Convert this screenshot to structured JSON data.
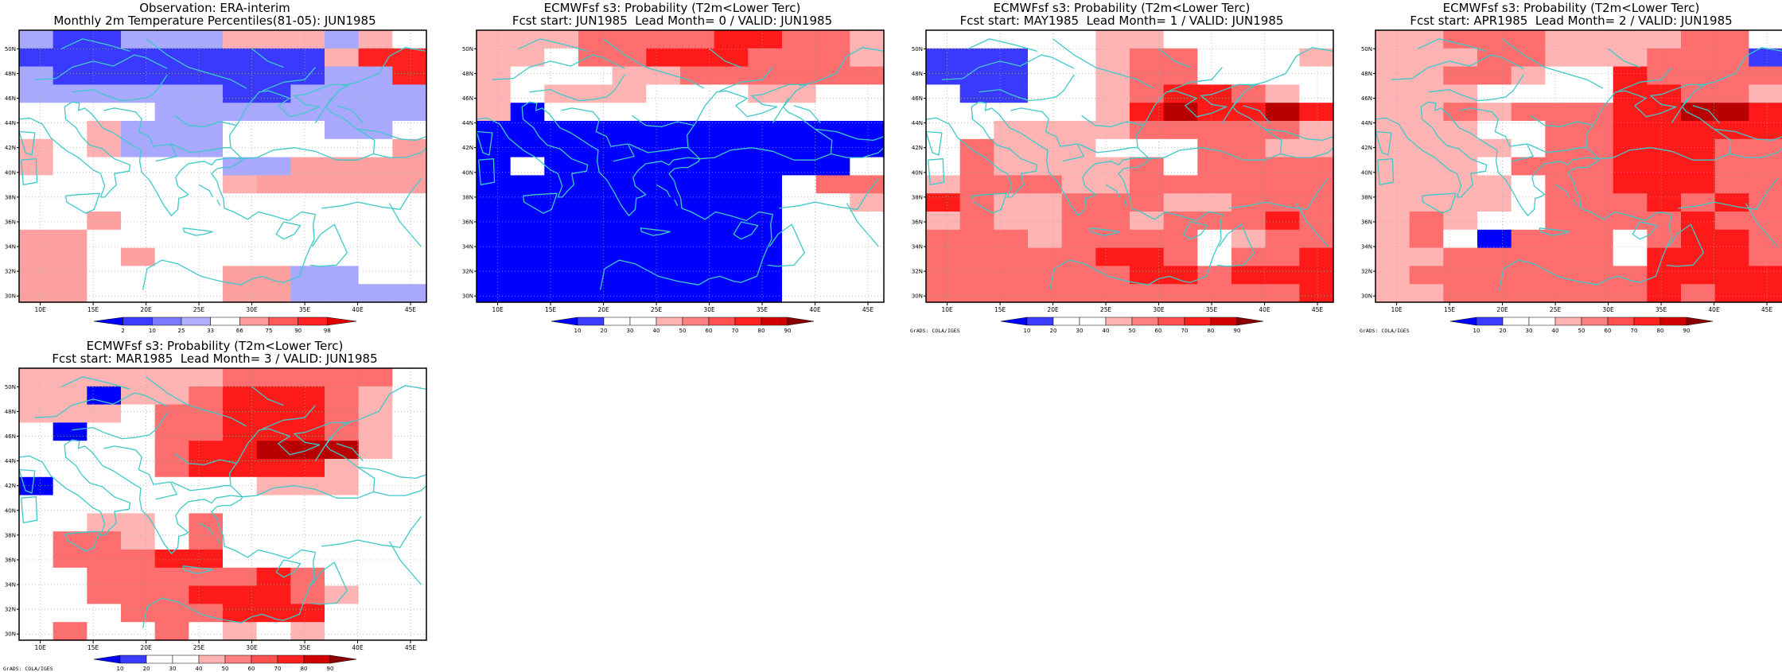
{
  "geo": {
    "lon_ticks": [
      "10E",
      "15E",
      "20E",
      "25E",
      "30E",
      "35E",
      "40E",
      "45E"
    ],
    "lon_tick_values": [
      10,
      15,
      20,
      25,
      30,
      35,
      40,
      45
    ],
    "lat_ticks": [
      "30N",
      "32N",
      "34N",
      "36N",
      "38N",
      "40N",
      "42N",
      "44N",
      "46N",
      "48N",
      "50N"
    ],
    "lat_tick_values": [
      30,
      32,
      34,
      36,
      38,
      40,
      42,
      44,
      46,
      48,
      50
    ],
    "lon_range": [
      8,
      46.5
    ],
    "lat_range": [
      29.5,
      51.5
    ],
    "coast_color": "#3ec9c9"
  },
  "colorbars": {
    "observation": {
      "labels": [
        "2",
        "10",
        "25",
        "33",
        "66",
        "75",
        "90",
        "98"
      ],
      "colors": [
        "#0000ff",
        "#3c3cff",
        "#7a7aff",
        "#b0b0ff",
        "#ffffff",
        "#ff9a9a",
        "#ff5a5a",
        "#ff2020",
        "#e00000"
      ]
    },
    "probability": {
      "labels": [
        "10",
        "20",
        "30",
        "40",
        "50",
        "60",
        "70",
        "80",
        "90"
      ],
      "colors": [
        "#0000ff",
        "#3c3cff",
        "#ffffff",
        "#ffffff",
        "#ffb3b3",
        "#ff8080",
        "#ff5050",
        "#ff2020",
        "#d00000",
        "#8a0000"
      ]
    }
  },
  "credit": "GrADS: COLA/IGES",
  "panels": [
    {
      "title_1": "Observation: ERA-interim",
      "title_2": "Monthly 2m Temperature Percentiles(81-05): JUN1985",
      "colorbar": "observation",
      "show_credit": false
    },
    {
      "title_1": "ECMWFsf s3: Probability (T2m<Lower Terc)",
      "title_2": "Fcst start: JUN1985  Lead Month= 0 / VALID: JUN1985",
      "colorbar": "probability",
      "show_credit": false
    },
    {
      "title_1": "ECMWFsf s3: Probability (T2m<Lower Terc)",
      "title_2": "Fcst start: MAY1985  Lead Month= 1 / VALID: JUN1985",
      "colorbar": "probability",
      "show_credit": true
    },
    {
      "title_1": "ECMWFsf s3: Probability (T2m<Lower Terc)",
      "title_2": "Fcst start: APR1985  Lead Month= 2 / VALID: JUN1985",
      "colorbar": "probability",
      "show_credit": true
    },
    {
      "title_1": "ECMWFsf s3: Probability (T2m<Lower Terc)",
      "title_2": "Fcst start: MAR1985  Lead Month= 3 / VALID: JUN1985",
      "colorbar": "probability",
      "show_credit": true
    }
  ],
  "grids": [
    [
      "CBBCCCDDDCDX",
      "BBBBBBBBBDEE",
      "CBBBBBBBBCCE",
      "CCCCCCBBCCCC",
      "XXXXCCCCCCCC",
      "XXDCCCXXXCCX",
      "DXDCCCXXXXXG",
      "DXXXXXCCGGGG",
      "XXXXXXDGGGGG",
      "XXXXXXXXXXXX",
      "XXGXXXXXXXXX",
      "GGXXXXXXXXXX",
      "GGXGXXXXXXXX",
      "GGXXXXGGCCXX",
      "GGXXXXGGCCCC"
    ],
    [
      "ggghhhhjjhhg",
      "ggXhhjjjhhhg",
      "gXXXgghhhhhh",
      "gXgggXXXggXX",
      "gAXXXXXXXXXX",
      "AAAAAAAAAAAA",
      "AAAAAAAAAAAA",
      "AXAAAAAAAAAX",
      "AAAAAAAAAXhh",
      "AAAAAAAAAXXg",
      "AAAAAAAAAXXX",
      "AAAAAAAAAXXX",
      "AAAAAAAAAXXX",
      "AAAAAAAAAXXX",
      "AAAAAAAAAXXX"
    ],
    [
      "XXXXXggXXXXX",
      "BBBXXghhXXXg",
      "BBBXXghhXXXX",
      "XBBXXghjjhgX",
      "XXXXXgjkjjkj",
      "XXgggghhhhhg",
      "XhgggXXXhhgg",
      "XhgggghXhhhh",
      "ghhhgghhhhhh",
      "jhgghhhgghhh",
      "ghgghhghhhjh",
      "hhhghhhhXghh",
      "hhhhhjjhXhhj",
      "hhhhhhjjhjjj",
      "hhhhhhhhhhhj"
    ],
    [
      "gghhhgggghhX",
      "ggghhggghhhB",
      "gghhgXXjhhhh",
      "gggXXXXjjhhg",
      "gghghhhjjkkj",
      "gggXXhhjjjjj",
      "ggggXhhjjjhh",
      "gggXhhhjjjhh",
      "ggggXhhjjjhh",
      "ggggXhhhjhjh",
      "ghgXXhhhhjhh",
      "ghXAhhhXhjjh",
      "gghhhhhXjjjh",
      "ghhhhhhhjjjj",
      "gghhhhhhjhjj"
    ],
    [
      "gggggghhhhhX",
      "ggAgghjjjhgX",
      "gggXhhjjjhgX",
      "XAXXhhjjjhgX",
      "XXXXhjjkkkgX",
      "XXXXhjjjjgXX",
      "AXXXXXXgggXX",
      "XXXXXXXXXXXX",
      "XXggXhXXXXXX",
      "XhhgXhXXXXXX",
      "XhhhjjXXXXXX",
      "XXhhhhhjhXXX",
      "XXhhhjjjhgXX",
      "XXXhhhjjjXXX",
      "XhXXhXgXgXXX"
    ]
  ]
}
